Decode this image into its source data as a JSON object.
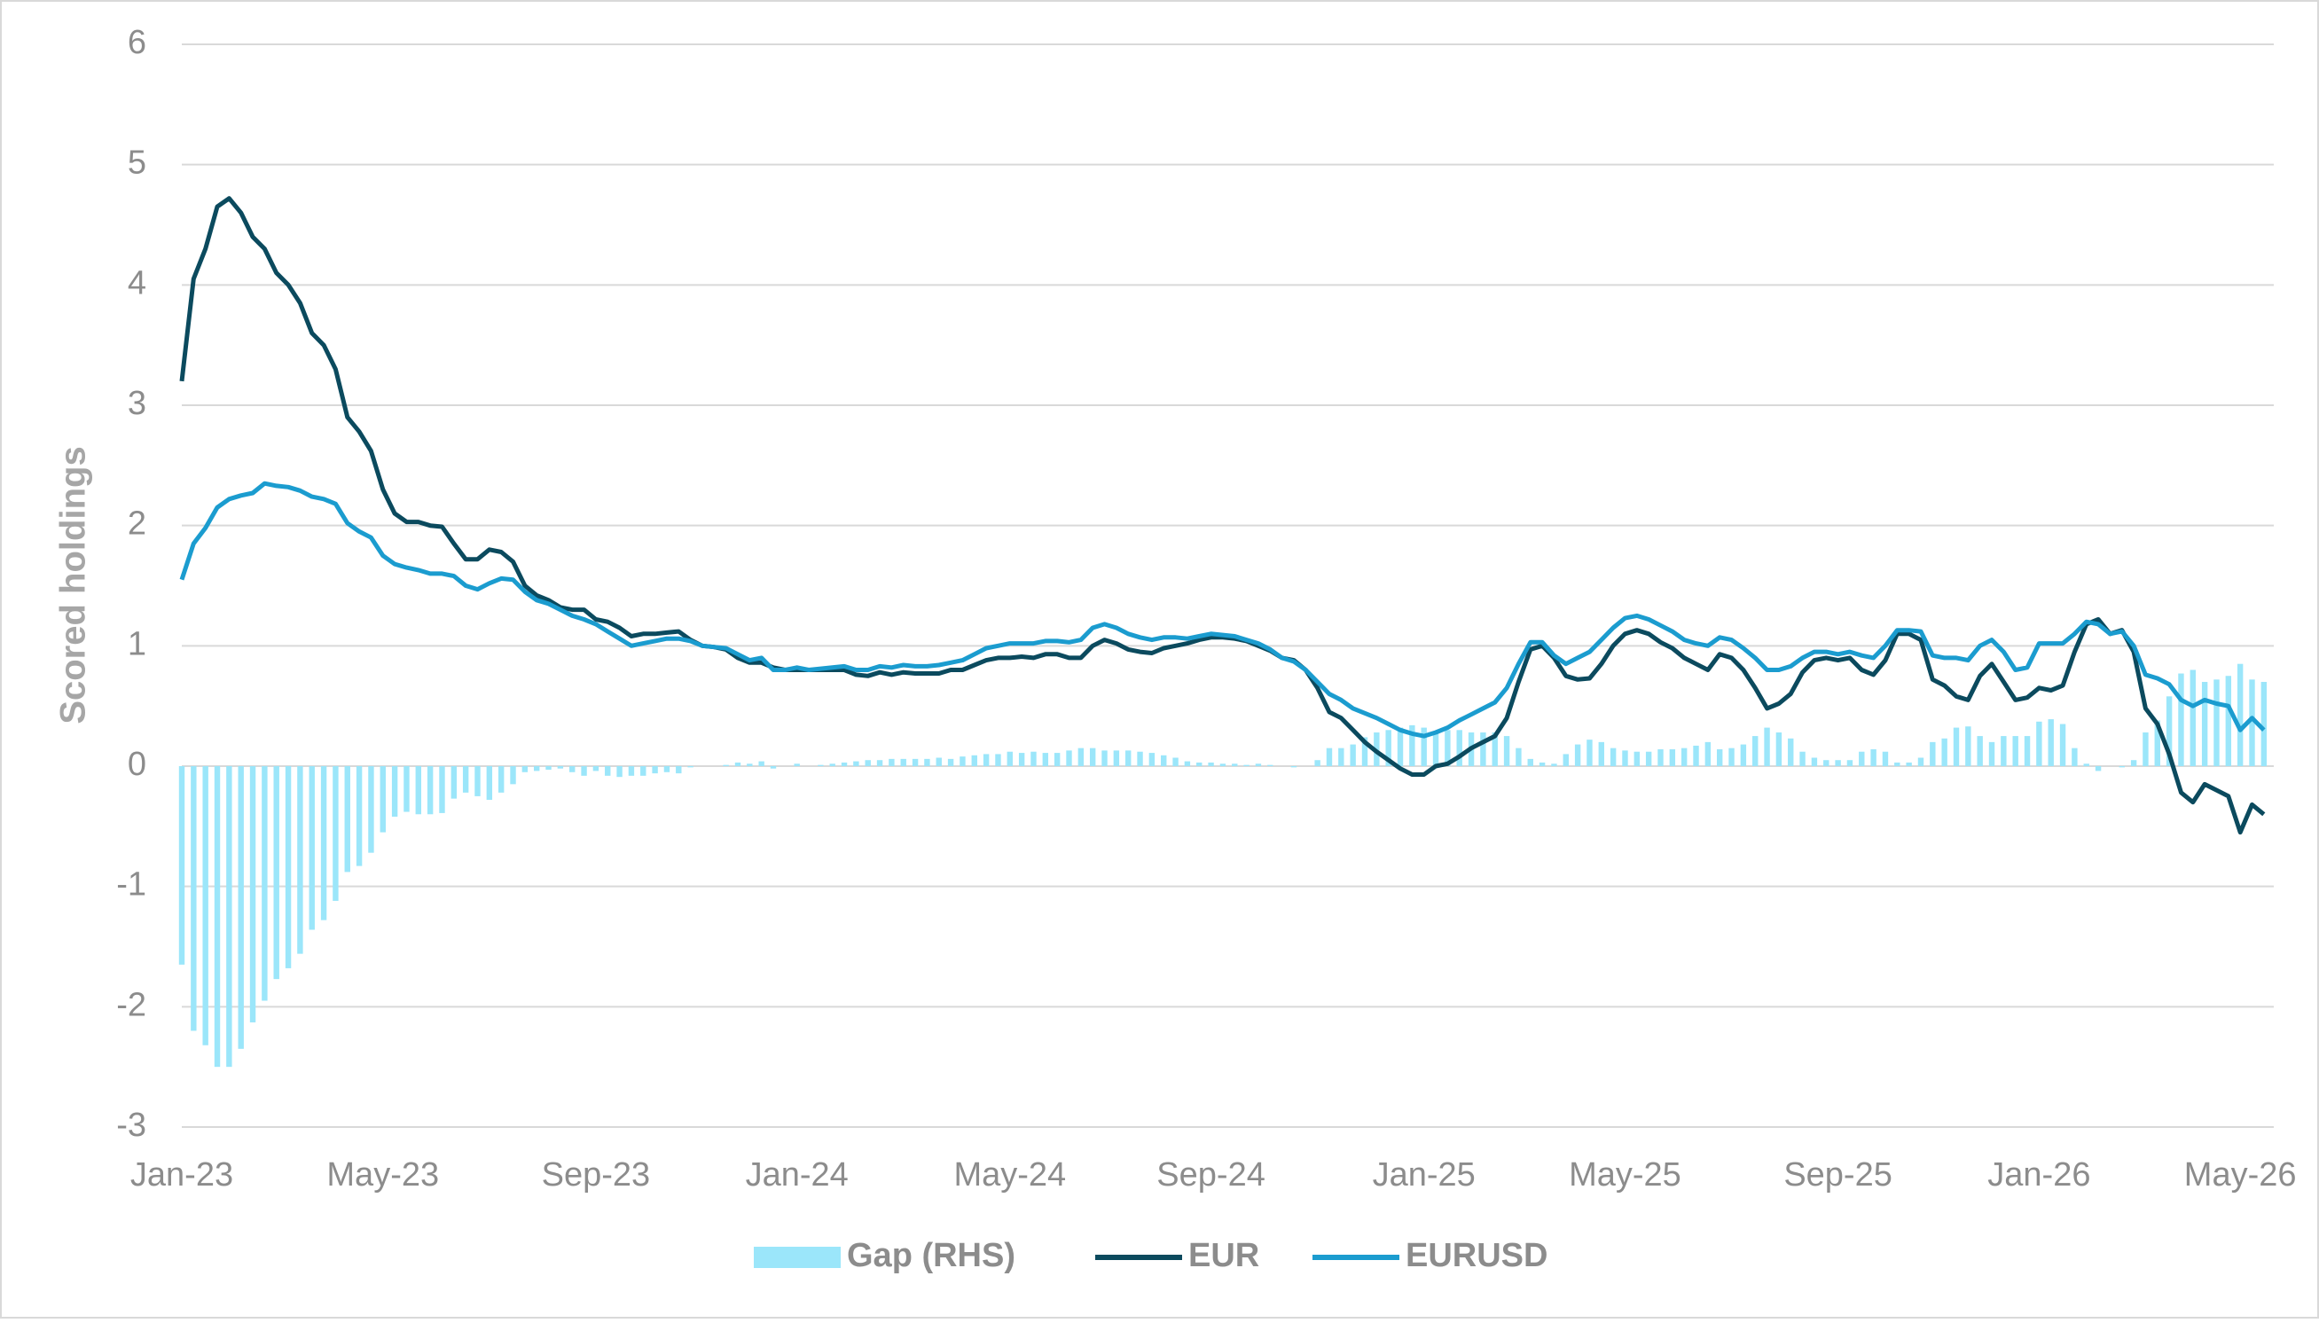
{
  "chart_data": {
    "type": "line",
    "y_label": "Scored holdings",
    "ylim": [
      -3,
      6
    ],
    "yticks": [
      -3,
      -2,
      -1,
      0,
      1,
      2,
      3,
      4,
      5,
      6
    ],
    "grid": true,
    "legend": "bottom",
    "categories": [
      "Jan-23",
      null,
      null,
      null,
      null,
      null,
      null,
      null,
      null,
      null,
      null,
      null,
      null,
      null,
      null,
      null,
      null,
      "May-23",
      null,
      null,
      null,
      null,
      null,
      null,
      null,
      null,
      null,
      null,
      null,
      null,
      null,
      null,
      null,
      null,
      null,
      "Sep-23",
      null,
      null,
      null,
      null,
      null,
      null,
      null,
      null,
      null,
      null,
      null,
      null,
      null,
      null,
      null,
      null,
      "Jan-24",
      null,
      null,
      null,
      null,
      null,
      null,
      null,
      null,
      null,
      null,
      null,
      null,
      null,
      null,
      null,
      null,
      null,
      "May-24",
      null,
      null,
      null,
      null,
      null,
      null,
      null,
      null,
      null,
      null,
      null,
      null,
      null,
      null,
      null,
      null,
      "Sep-24",
      null,
      null,
      null,
      null,
      null,
      null,
      null,
      null,
      null,
      null,
      null,
      null,
      null,
      null,
      null,
      null,
      null,
      "Jan-25",
      null,
      null,
      null,
      null,
      null,
      null,
      null,
      null,
      null,
      null,
      null,
      null,
      null,
      null,
      null,
      null,
      "May-25",
      null,
      null,
      null,
      null,
      null,
      null,
      null,
      null,
      null,
      null,
      null,
      null,
      null,
      null,
      null,
      null,
      null,
      "Sep-25",
      null,
      null,
      null,
      null,
      null,
      null,
      null,
      null,
      null,
      null,
      null,
      null,
      null,
      null,
      null,
      null,
      "Jan-26",
      null,
      null,
      null,
      null,
      null,
      null,
      null,
      null,
      null,
      null,
      null,
      null,
      null,
      null,
      null,
      null,
      "May-26",
      null,
      null
    ],
    "series": [
      {
        "name": "Gap (RHS)",
        "type": "bar",
        "color": "#9be6fa",
        "values": [
          -1.65,
          -2.2,
          -2.32,
          -2.5,
          -2.5,
          -2.35,
          -2.13,
          -1.95,
          -1.77,
          -1.68,
          -1.56,
          -1.36,
          -1.28,
          -1.12,
          -0.88,
          -0.83,
          -0.72,
          -0.55,
          -0.42,
          -0.38,
          -0.4,
          -0.4,
          -0.39,
          -0.27,
          -0.22,
          -0.25,
          -0.28,
          -0.22,
          -0.15,
          -0.05,
          -0.04,
          -0.03,
          -0.02,
          -0.05,
          -0.08,
          -0.04,
          -0.08,
          -0.09,
          -0.08,
          -0.08,
          -0.06,
          -0.05,
          -0.06,
          -0.01,
          0,
          0,
          0.01,
          0.03,
          0.02,
          0.04,
          -0.02,
          0,
          0.02,
          0,
          0.01,
          0.02,
          0.03,
          0.04,
          0.05,
          0.05,
          0.06,
          0.06,
          0.06,
          0.06,
          0.07,
          0.06,
          0.08,
          0.09,
          0.1,
          0.1,
          0.12,
          0.11,
          0.12,
          0.11,
          0.11,
          0.13,
          0.15,
          0.15,
          0.13,
          0.13,
          0.13,
          0.12,
          0.11,
          0.09,
          0.07,
          0.04,
          0.03,
          0.03,
          0.02,
          0.02,
          0.01,
          0.02,
          0.01,
          0,
          -0.01,
          0,
          0.05,
          0.15,
          0.15,
          0.18,
          0.24,
          0.28,
          0.3,
          0.32,
          0.34,
          0.32,
          0.28,
          0.3,
          0.3,
          0.28,
          0.28,
          0.28,
          0.25,
          0.15,
          0.06,
          0.03,
          0.02,
          0.1,
          0.18,
          0.22,
          0.2,
          0.15,
          0.13,
          0.12,
          0.12,
          0.14,
          0.14,
          0.15,
          0.17,
          0.2,
          0.14,
          0.15,
          0.18,
          0.25,
          0.32,
          0.28,
          0.23,
          0.12,
          0.07,
          0.05,
          0.05,
          0.05,
          0.12,
          0.14,
          0.12,
          0.03,
          0.03,
          0.07,
          0.2,
          0.23,
          0.32,
          0.33,
          0.25,
          0.2,
          0.25,
          0.25,
          0.25,
          0.37,
          0.39,
          0.35,
          0.15,
          0.02,
          -0.04,
          0,
          -0.01,
          0.05,
          0.28,
          0.38,
          0.58,
          0.77,
          0.8,
          0.7,
          0.72,
          0.75,
          0.85,
          0.72,
          0.7
        ]
      },
      {
        "name": "EUR",
        "type": "line",
        "color": "#0b4a5e",
        "values": [
          3.2,
          4.05,
          4.3,
          4.65,
          4.72,
          4.6,
          4.4,
          4.3,
          4.1,
          4.0,
          3.85,
          3.6,
          3.5,
          3.3,
          2.9,
          2.78,
          2.62,
          2.3,
          2.1,
          2.03,
          2.03,
          2.0,
          1.99,
          1.85,
          1.72,
          1.72,
          1.8,
          1.78,
          1.7,
          1.5,
          1.42,
          1.38,
          1.32,
          1.3,
          1.3,
          1.22,
          1.2,
          1.15,
          1.08,
          1.1,
          1.1,
          1.11,
          1.12,
          1.05,
          1.0,
          0.99,
          0.97,
          0.9,
          0.86,
          0.86,
          0.82,
          0.8,
          0.8,
          0.8,
          0.8,
          0.8,
          0.8,
          0.76,
          0.75,
          0.78,
          0.76,
          0.78,
          0.77,
          0.77,
          0.77,
          0.8,
          0.8,
          0.84,
          0.88,
          0.9,
          0.9,
          0.91,
          0.9,
          0.93,
          0.93,
          0.9,
          0.9,
          1.0,
          1.05,
          1.02,
          0.97,
          0.95,
          0.94,
          0.98,
          1.0,
          1.02,
          1.05,
          1.07,
          1.07,
          1.06,
          1.04,
          1.0,
          0.96,
          0.9,
          0.88,
          0.8,
          0.65,
          0.45,
          0.4,
          0.3,
          0.2,
          0.12,
          0.05,
          -0.02,
          -0.07,
          -0.07,
          0.0,
          0.02,
          0.08,
          0.15,
          0.2,
          0.25,
          0.4,
          0.7,
          0.97,
          1.0,
          0.9,
          0.75,
          0.72,
          0.73,
          0.85,
          1.0,
          1.1,
          1.13,
          1.1,
          1.03,
          0.98,
          0.9,
          0.85,
          0.8,
          0.93,
          0.9,
          0.8,
          0.65,
          0.48,
          0.52,
          0.6,
          0.78,
          0.88,
          0.9,
          0.88,
          0.9,
          0.8,
          0.76,
          0.88,
          1.1,
          1.1,
          1.05,
          0.72,
          0.67,
          0.58,
          0.55,
          0.75,
          0.85,
          0.7,
          0.55,
          0.57,
          0.65,
          0.63,
          0.67,
          0.95,
          1.18,
          1.22,
          1.1,
          1.13,
          0.95,
          0.48,
          0.35,
          0.1,
          -0.22,
          -0.3,
          -0.15,
          -0.2,
          -0.25,
          -0.55,
          -0.32,
          -0.4
        ]
      },
      {
        "name": "EURUSD",
        "type": "line",
        "color": "#1b9ccf",
        "values": [
          1.55,
          1.85,
          1.98,
          2.15,
          2.22,
          2.25,
          2.27,
          2.35,
          2.33,
          2.32,
          2.29,
          2.24,
          2.22,
          2.18,
          2.02,
          1.95,
          1.9,
          1.75,
          1.68,
          1.65,
          1.63,
          1.6,
          1.6,
          1.58,
          1.5,
          1.47,
          1.52,
          1.56,
          1.55,
          1.45,
          1.38,
          1.35,
          1.3,
          1.25,
          1.22,
          1.18,
          1.12,
          1.06,
          1.0,
          1.02,
          1.04,
          1.06,
          1.06,
          1.04,
          1.0,
          0.99,
          0.98,
          0.93,
          0.88,
          0.9,
          0.8,
          0.8,
          0.82,
          0.8,
          0.81,
          0.82,
          0.83,
          0.8,
          0.8,
          0.83,
          0.82,
          0.84,
          0.83,
          0.83,
          0.84,
          0.86,
          0.88,
          0.93,
          0.98,
          1.0,
          1.02,
          1.02,
          1.02,
          1.04,
          1.04,
          1.03,
          1.05,
          1.15,
          1.18,
          1.15,
          1.1,
          1.07,
          1.05,
          1.07,
          1.07,
          1.06,
          1.08,
          1.1,
          1.09,
          1.08,
          1.05,
          1.02,
          0.97,
          0.9,
          0.87,
          0.8,
          0.7,
          0.6,
          0.55,
          0.48,
          0.44,
          0.4,
          0.35,
          0.3,
          0.27,
          0.25,
          0.28,
          0.32,
          0.38,
          0.43,
          0.48,
          0.53,
          0.65,
          0.85,
          1.03,
          1.03,
          0.92,
          0.85,
          0.9,
          0.95,
          1.05,
          1.15,
          1.23,
          1.25,
          1.22,
          1.17,
          1.12,
          1.05,
          1.02,
          1.0,
          1.07,
          1.05,
          0.98,
          0.9,
          0.8,
          0.8,
          0.83,
          0.9,
          0.95,
          0.95,
          0.93,
          0.95,
          0.92,
          0.9,
          1.0,
          1.13,
          1.13,
          1.12,
          0.92,
          0.9,
          0.9,
          0.88,
          1.0,
          1.05,
          0.95,
          0.8,
          0.82,
          1.02,
          1.02,
          1.02,
          1.1,
          1.2,
          1.18,
          1.1,
          1.12,
          1.0,
          0.76,
          0.73,
          0.68,
          0.55,
          0.5,
          0.55,
          0.52,
          0.5,
          0.3,
          0.4,
          0.3
        ]
      }
    ]
  }
}
